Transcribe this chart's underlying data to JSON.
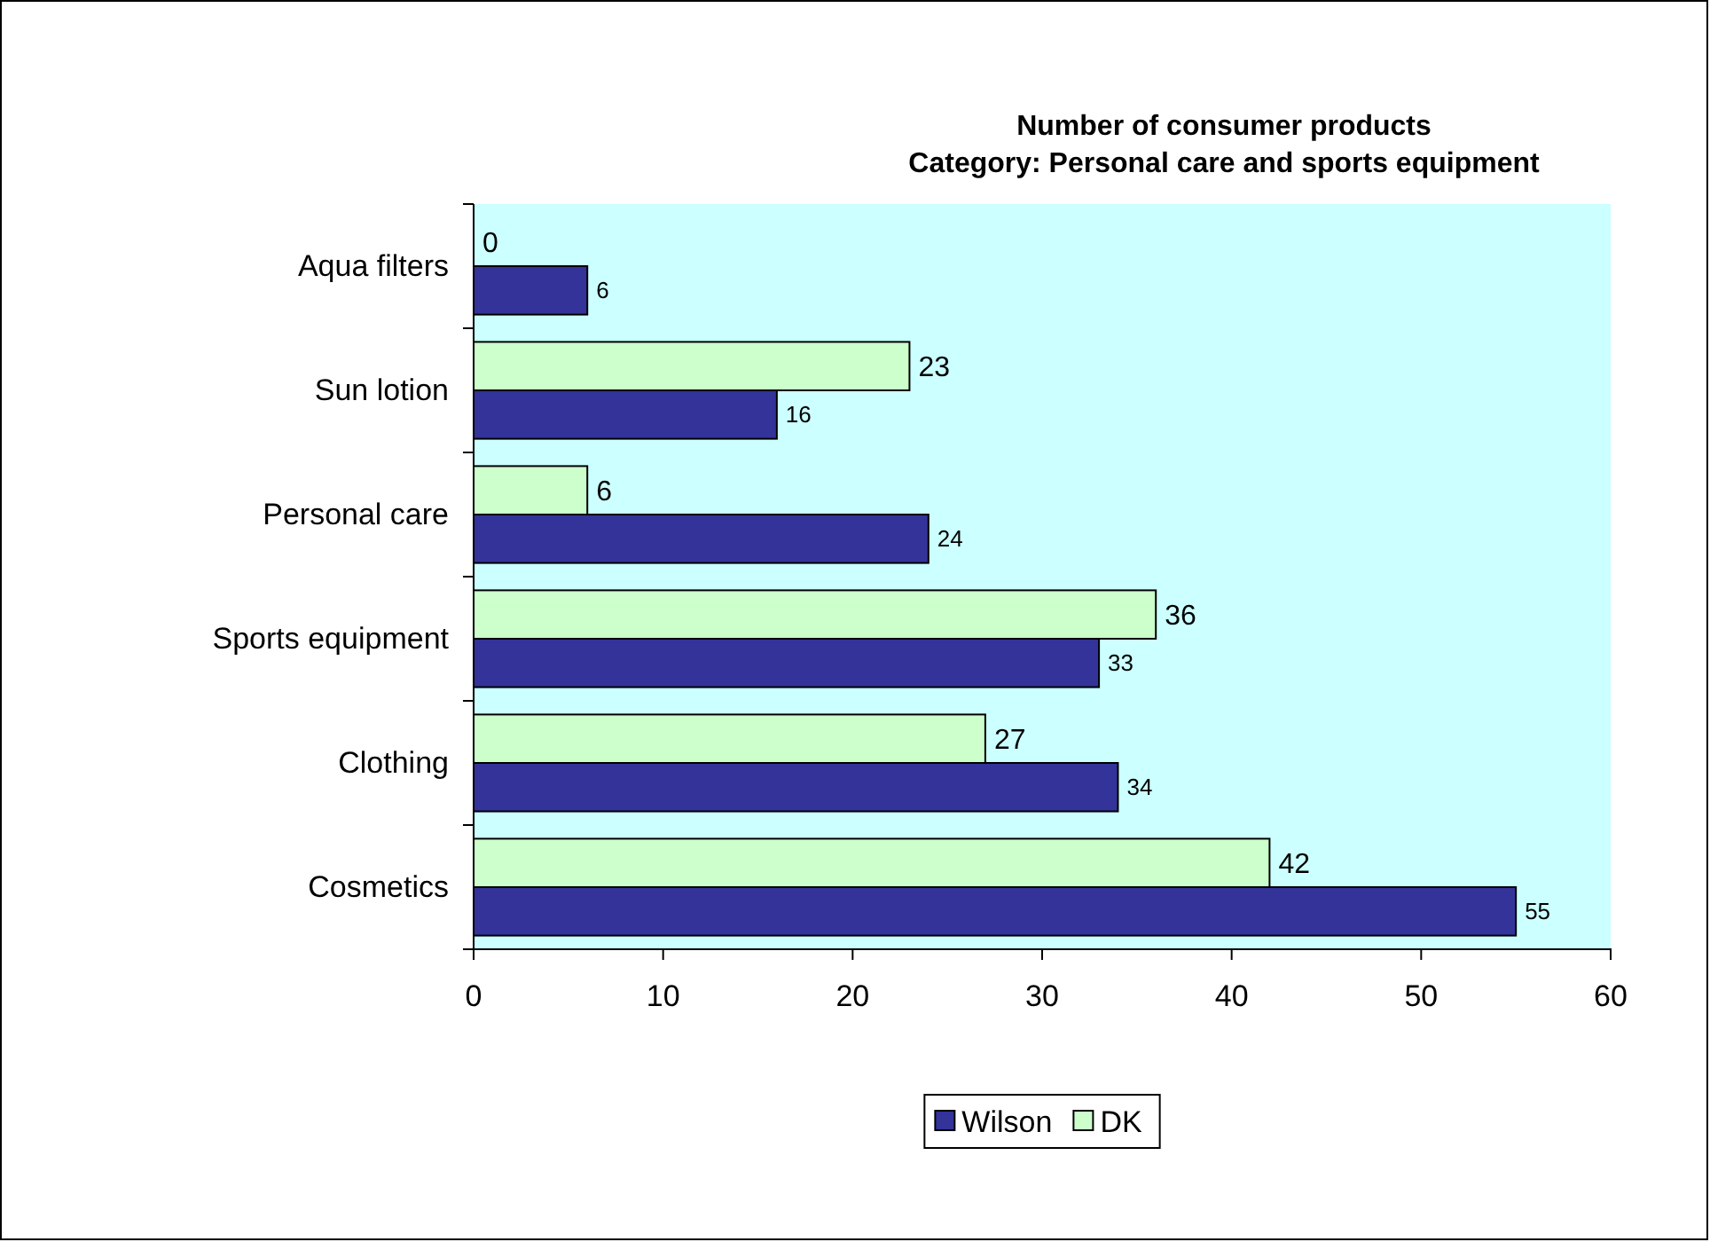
{
  "chart_data": {
    "type": "bar",
    "orientation": "horizontal",
    "title": "Number of consumer products\nCategory: Personal care and sports equipment",
    "categories": [
      "Aqua filters",
      "Sun lotion",
      "Personal care",
      "Sports equipment",
      "Clothing",
      "Cosmetics"
    ],
    "series": [
      {
        "name": "Wilson",
        "color": "#333399",
        "values": [
          6,
          16,
          24,
          33,
          34,
          55
        ]
      },
      {
        "name": "DK",
        "color": "#ccffcc",
        "values": [
          0,
          23,
          6,
          36,
          27,
          42
        ]
      }
    ],
    "xlim": [
      0,
      60
    ],
    "xticks": [
      0,
      10,
      20,
      30,
      40,
      50,
      60
    ],
    "grid": false,
    "legend": "bottom",
    "data_labels": true
  }
}
